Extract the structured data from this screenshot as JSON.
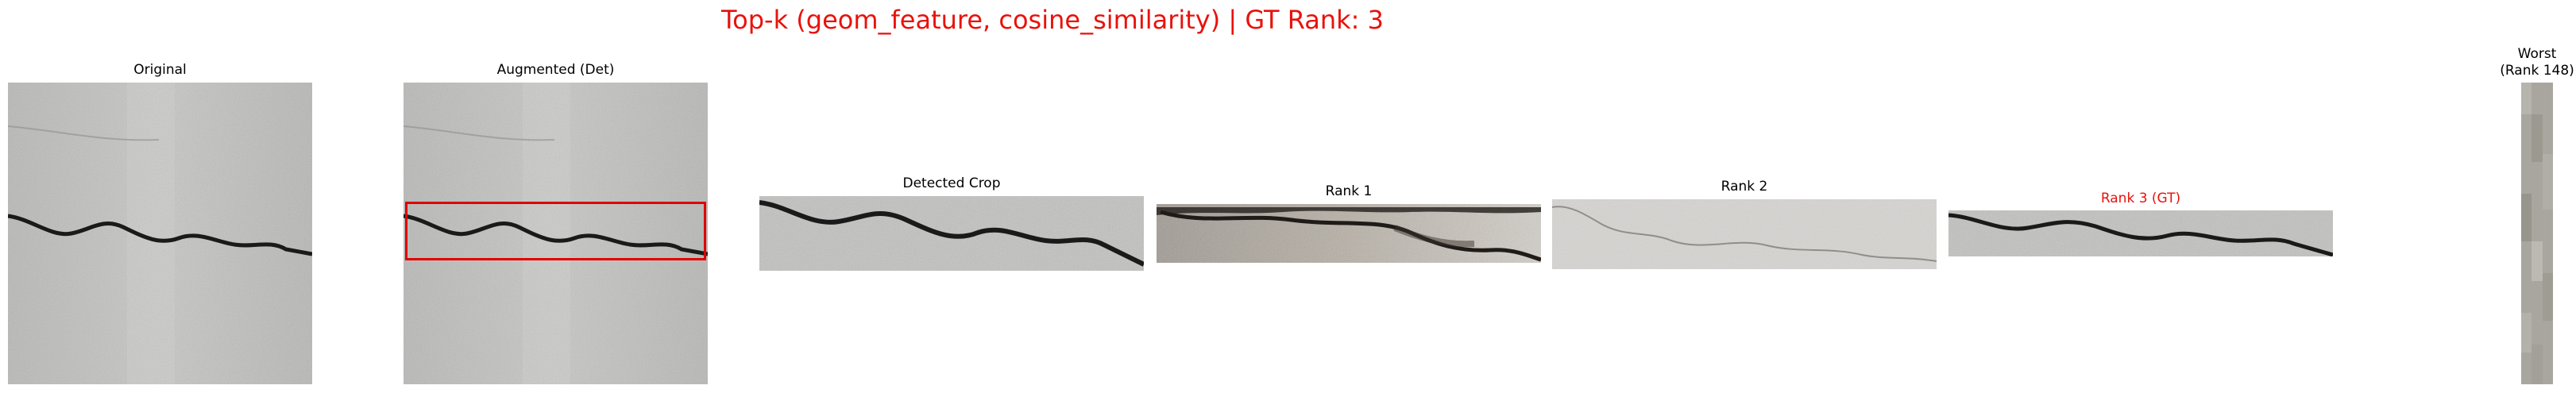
{
  "title": "Top-k (geom_feature, cosine_similarity) | GT Rank: 3",
  "title_color": "#e8120c",
  "gt_color": "#e8120c",
  "panels": {
    "original": {
      "label": "Original"
    },
    "augmented": {
      "label": "Augmented (Det)"
    },
    "detected_crop": {
      "label": "Detected Crop"
    },
    "rank1": {
      "label": "Rank 1"
    },
    "rank2": {
      "label": "Rank 2"
    },
    "rank3": {
      "label": "Rank 3 (GT)"
    },
    "worst": {
      "label": "Worst\n(Rank 148)"
    }
  },
  "box_color": "#e00000"
}
